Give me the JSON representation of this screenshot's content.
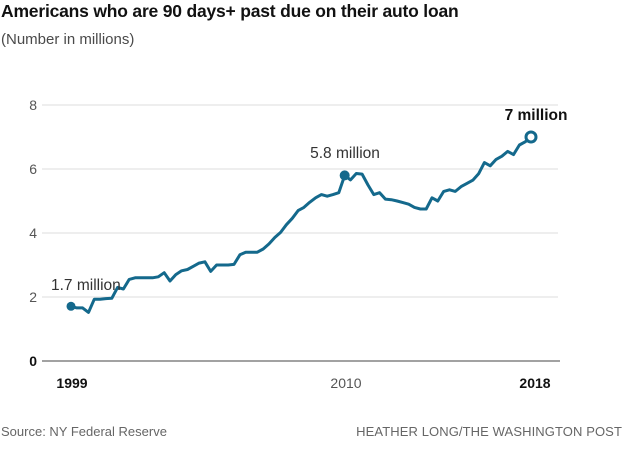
{
  "header": {
    "title": "Americans who are 90 days+ past due on their auto loan",
    "subtitle": "(Number in millions)"
  },
  "footer": {
    "source": "Source: NY Federal Reserve",
    "credit": "HEATHER LONG/THE WASHINGTON POST"
  },
  "colors": {
    "line": "#14698c",
    "grid": "#dcdcdc",
    "axis": "#444444",
    "title_text": "#111111",
    "muted_text": "#555555",
    "footer_text": "#666666"
  },
  "chart_data": {
    "type": "line",
    "title": "Americans who are 90 days+ past due on their auto loan",
    "subtitle": "(Number in millions)",
    "unit": "millions of people",
    "x_frequency": "quarterly",
    "x_range": [
      1999,
      2018.75
    ],
    "ylim": [
      0,
      8.6
    ],
    "yticks": [
      0,
      2,
      4,
      6,
      8
    ],
    "grid": true,
    "legend_position": "none",
    "xticks": [
      {
        "label": "1999",
        "bold": true
      },
      {
        "label": "2010",
        "bold": false
      },
      {
        "label": "2018",
        "bold": true
      }
    ],
    "values": [
      1.71,
      1.66,
      1.66,
      1.52,
      1.93,
      1.93,
      1.95,
      1.96,
      2.3,
      2.25,
      2.55,
      2.6,
      2.6,
      2.6,
      2.6,
      2.63,
      2.76,
      2.5,
      2.7,
      2.82,
      2.86,
      2.96,
      3.06,
      3.1,
      2.8,
      3.0,
      3.0,
      3.0,
      3.02,
      3.32,
      3.4,
      3.4,
      3.4,
      3.5,
      3.66,
      3.86,
      4.02,
      4.26,
      4.46,
      4.7,
      4.8,
      4.96,
      5.1,
      5.2,
      5.15,
      5.2,
      5.26,
      5.8,
      5.66,
      5.86,
      5.84,
      5.5,
      5.2,
      5.26,
      5.06,
      5.04,
      5.0,
      4.95,
      4.9,
      4.8,
      4.75,
      4.75,
      5.1,
      5.0,
      5.3,
      5.35,
      5.3,
      5.45,
      5.55,
      5.65,
      5.85,
      6.2,
      6.1,
      6.3,
      6.4,
      6.55,
      6.45,
      6.75,
      6.85,
      7.0
    ],
    "annotations": [
      {
        "index": 0,
        "label": "1.7 million",
        "value": 1.7,
        "marker": "filled",
        "bold": false
      },
      {
        "index": 47,
        "label": "5.8 million",
        "value": 5.8,
        "marker": "filled",
        "bold": false
      },
      {
        "index": 79,
        "label": "7 million",
        "value": 7.0,
        "marker": "open",
        "bold": true
      }
    ]
  }
}
